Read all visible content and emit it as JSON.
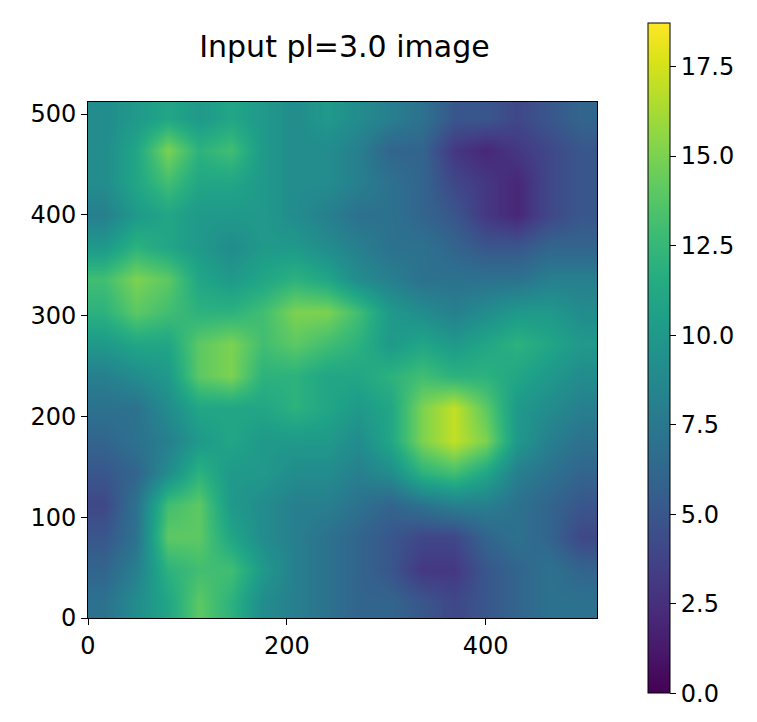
{
  "chart_data": {
    "type": "heatmap",
    "title": "Input pl=3.0 image",
    "color": "Viridis",
    "x": [
      16,
      48,
      80,
      112,
      144,
      176,
      208,
      240,
      272,
      304,
      336,
      368,
      400,
      432,
      464,
      496
    ],
    "y": [
      16,
      48,
      80,
      112,
      144,
      176,
      208,
      240,
      272,
      304,
      336,
      368,
      400,
      432,
      464,
      496
    ],
    "xlim": [
      0,
      512
    ],
    "ylim": [
      0,
      512
    ],
    "xticks": [
      0,
      200,
      400
    ],
    "yticks": [
      0,
      100,
      200,
      300,
      400,
      500
    ],
    "values": [
      [
        7,
        9,
        11,
        14,
        12,
        9,
        8,
        7,
        6,
        6,
        5,
        4,
        5,
        6,
        7,
        7
      ],
      [
        6,
        8,
        12,
        13,
        13,
        10,
        8,
        7,
        6,
        5,
        3,
        3,
        5,
        6,
        7,
        6
      ],
      [
        5,
        7,
        14,
        14,
        11,
        9,
        8,
        7,
        6,
        5,
        4,
        4,
        6,
        7,
        6,
        4
      ],
      [
        4,
        7,
        13,
        14,
        10,
        9,
        8,
        8,
        7,
        6,
        7,
        8,
        8,
        7,
        6,
        5
      ],
      [
        5,
        6,
        9,
        12,
        10,
        10,
        9,
        9,
        8,
        9,
        12,
        13,
        11,
        8,
        7,
        6
      ],
      [
        6,
        7,
        8,
        10,
        11,
        10,
        10,
        10,
        9,
        11,
        15,
        17,
        15,
        10,
        8,
        7
      ],
      [
        7,
        7,
        9,
        11,
        11,
        11,
        12,
        11,
        10,
        11,
        15,
        17,
        14,
        10,
        9,
        8
      ],
      [
        8,
        9,
        10,
        14,
        15,
        12,
        12,
        11,
        11,
        12,
        13,
        12,
        12,
        11,
        10,
        9
      ],
      [
        10,
        11,
        11,
        14,
        15,
        13,
        14,
        13,
        12,
        10,
        11,
        10,
        11,
        12,
        11,
        10
      ],
      [
        12,
        14,
        13,
        12,
        12,
        13,
        15,
        15,
        13,
        10,
        9,
        8,
        9,
        10,
        10,
        9
      ],
      [
        13,
        15,
        14,
        11,
        10,
        11,
        12,
        11,
        9,
        8,
        7,
        7,
        7,
        7,
        8,
        8
      ],
      [
        10,
        12,
        11,
        10,
        9,
        10,
        10,
        9,
        8,
        7,
        7,
        6,
        5,
        5,
        6,
        6
      ],
      [
        8,
        10,
        11,
        10,
        10,
        10,
        9,
        8,
        7,
        7,
        6,
        5,
        3,
        2,
        4,
        5
      ],
      [
        9,
        11,
        13,
        11,
        11,
        10,
        9,
        9,
        8,
        7,
        6,
        4,
        3,
        2,
        4,
        5
      ],
      [
        9,
        11,
        15,
        12,
        13,
        10,
        9,
        9,
        8,
        6,
        6,
        3,
        2,
        3,
        4,
        5
      ],
      [
        9,
        10,
        11,
        10,
        11,
        10,
        9,
        10,
        9,
        8,
        7,
        5,
        5,
        4,
        5,
        6
      ]
    ],
    "colorbar": {
      "range": [
        0,
        18.7
      ],
      "ticks": [
        {
          "value": 0,
          "label": "0.0"
        },
        2.5,
        {
          "value": 5,
          "label": "5.0"
        },
        7.5,
        {
          "value": 10,
          "label": "10.0"
        },
        12.5,
        {
          "value": 15,
          "label": "15.0"
        },
        17.5
      ]
    }
  }
}
